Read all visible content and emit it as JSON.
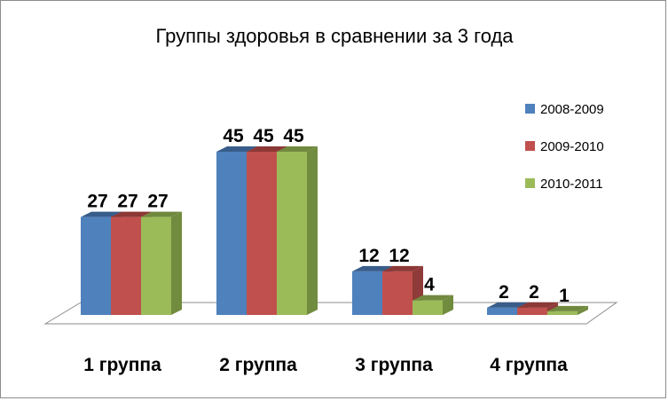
{
  "chart_data": {
    "type": "bar",
    "title": "Группы здоровья в сравнении за 3 года",
    "categories": [
      "1 группа",
      "2 группа",
      "3 группа",
      "4 группа"
    ],
    "series": [
      {
        "name": "2008-2009",
        "values": [
          27,
          45,
          12,
          2
        ],
        "color": "#4f81bd",
        "side": "#3a6192",
        "top": "#385d8a"
      },
      {
        "name": "2009-2010",
        "values": [
          27,
          45,
          12,
          2
        ],
        "color": "#c0504d",
        "side": "#8f3b39",
        "top": "#8c3836"
      },
      {
        "name": "2010-2011",
        "values": [
          27,
          45,
          4,
          1
        ],
        "color": "#9bbb59",
        "side": "#718b3f",
        "top": "#71893f"
      }
    ],
    "legend_position": "right",
    "grid": false,
    "ylim": [
      0,
      45
    ]
  }
}
